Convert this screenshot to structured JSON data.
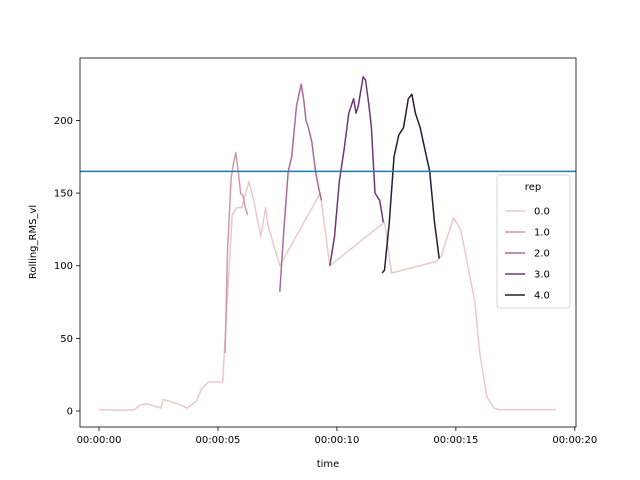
{
  "chart_data": {
    "type": "line",
    "title": "",
    "xlabel": "time",
    "ylabel": "Rolling_RMS_vl",
    "xlim": [
      -0.8,
      20.05
    ],
    "ylim": [
      -11,
      243
    ],
    "x_tick_values": [
      0,
      5,
      10,
      15,
      20
    ],
    "x_tick_labels": [
      "00:00:00",
      "00:00:05",
      "00:00:10",
      "00:00:15",
      "00:00:20"
    ],
    "y_tick_values": [
      0,
      50,
      100,
      150,
      200
    ],
    "y_tick_labels": [
      "0",
      "50",
      "100",
      "150",
      "200"
    ],
    "grid": false,
    "reference_line": {
      "y": 165,
      "color": "#1f77b4"
    },
    "legend": {
      "title": "rep",
      "placement": "right",
      "entries": [
        "0.0",
        "1.0",
        "2.0",
        "3.0",
        "4.0"
      ]
    },
    "series": [
      {
        "name": "0.0",
        "color": "#ebcac5",
        "x": [
          0,
          1.0,
          1.5,
          1.7,
          2.0,
          2.6,
          2.7,
          3.3,
          3.6,
          3.7,
          4.1,
          4.3,
          4.6,
          5.2,
          5.25,
          5.6,
          5.8,
          6.0,
          6.3,
          6.5,
          6.8,
          7.0,
          7.1,
          7.6,
          9.3,
          9.7,
          12.0,
          12.3,
          14.2,
          14.4,
          14.6,
          14.9,
          15.2,
          15.5,
          15.8,
          16.0,
          16.3,
          16.6,
          16.8,
          17.2,
          18.0,
          19.2
        ],
        "y": [
          1,
          0.5,
          1,
          4,
          5,
          2,
          8,
          5,
          3,
          2,
          7,
          15,
          20,
          20,
          35,
          135,
          140,
          140,
          158,
          145,
          120,
          140,
          128,
          100,
          150,
          100,
          130,
          95,
          103,
          107,
          118,
          133,
          125,
          100,
          75,
          40,
          10,
          2,
          1,
          1,
          1,
          1
        ]
      },
      {
        "name": "1.0",
        "color": "#d597ad",
        "x": [
          5.3,
          5.4,
          5.55,
          5.65,
          5.75,
          5.85,
          5.95,
          6.05,
          6.15,
          6.25
        ],
        "y": [
          40,
          110,
          160,
          170,
          178,
          165,
          150,
          148,
          140,
          135
        ]
      },
      {
        "name": "2.0",
        "color": "#ae6a99",
        "x": [
          7.6,
          7.75,
          7.95,
          8.1,
          8.3,
          8.5,
          8.6,
          8.7,
          8.8,
          8.95,
          9.1,
          9.25,
          9.35
        ],
        "y": [
          82,
          120,
          165,
          175,
          210,
          225,
          215,
          200,
          195,
          185,
          165,
          152,
          145
        ]
      },
      {
        "name": "3.0",
        "color": "#6d3777",
        "x": [
          9.7,
          9.9,
          10.1,
          10.3,
          10.5,
          10.7,
          10.8,
          10.9,
          11.1,
          11.2,
          11.35,
          11.45,
          11.6,
          11.8,
          11.95
        ],
        "y": [
          100,
          120,
          158,
          180,
          205,
          215,
          205,
          210,
          230,
          228,
          210,
          195,
          150,
          145,
          130
        ]
      },
      {
        "name": "4.0",
        "color": "#2a1a36",
        "x": [
          11.9,
          12.0,
          12.2,
          12.4,
          12.6,
          12.8,
          13.0,
          13.15,
          13.3,
          13.5,
          13.7,
          13.9,
          14.1,
          14.3
        ],
        "y": [
          95,
          97,
          130,
          175,
          190,
          195,
          215,
          218,
          205,
          195,
          180,
          165,
          130,
          105
        ]
      }
    ]
  }
}
